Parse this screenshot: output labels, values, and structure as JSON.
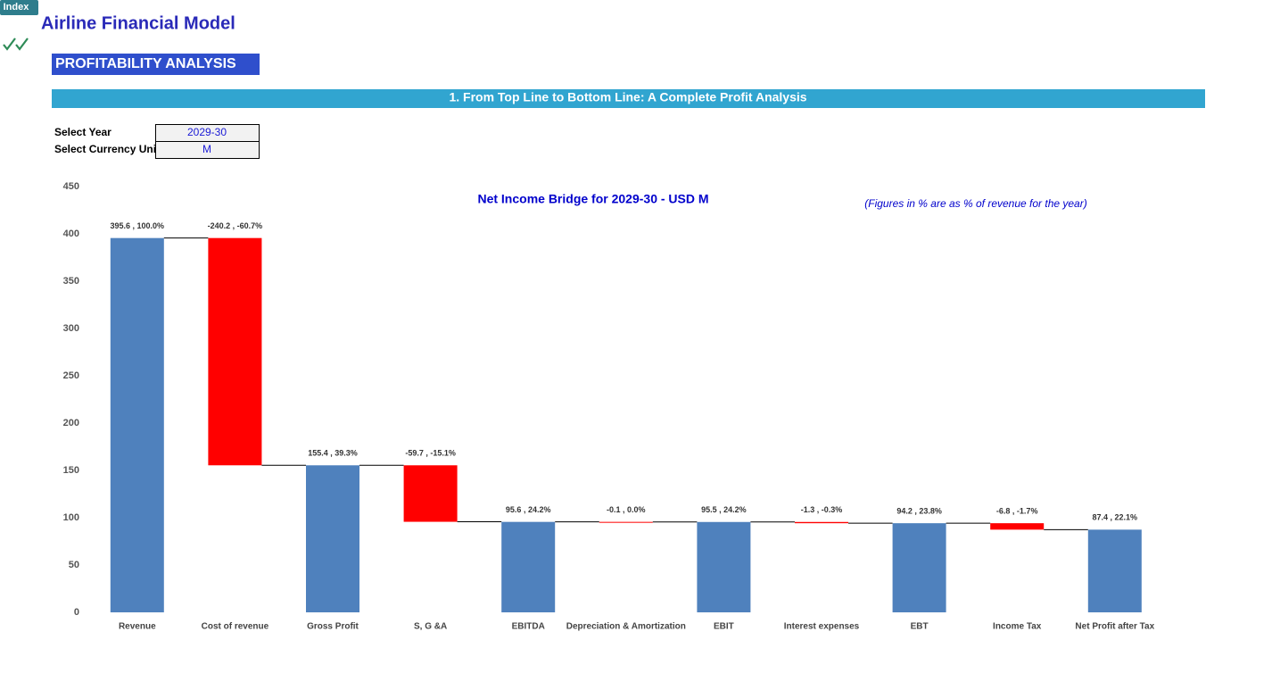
{
  "index_button": "Index",
  "header": {
    "title": "Airline Financial Model",
    "section": "PROFITABILITY ANALYSIS",
    "subsection": "1. From Top Line to Bottom Line: A Complete Profit Analysis"
  },
  "inputs": [
    {
      "label": "Select Year",
      "value": "2029-30"
    },
    {
      "label": "Select Currency Unit",
      "value": "M"
    }
  ],
  "chart_data": {
    "type": "waterfall",
    "title": "Net Income Bridge for 2029-30 - USD M",
    "annotation": "(Figures in % are as % of revenue for the year)",
    "categories": [
      "Revenue",
      "Cost of revenue",
      "Gross Profit",
      "S, G &A",
      "EBITDA",
      "Depreciation & Amortization",
      "EBIT",
      "Interest expenses",
      "EBT",
      "Income Tax",
      "Net Profit after Tax"
    ],
    "values": [
      395.6,
      -240.2,
      155.4,
      -59.7,
      95.6,
      -0.1,
      95.5,
      -1.3,
      94.2,
      -6.8,
      87.4
    ],
    "value_labels": [
      "395.6 , 100.0%",
      "-240.2 , -60.7%",
      "155.4 , 39.3%",
      "-59.7 , -15.1%",
      "95.6 , 24.2%",
      "-0.1 , 0.0%",
      "95.5 , 24.2%",
      "-1.3 , -0.3%",
      "94.2 , 23.8%",
      "-6.8 , -1.7%",
      "87.4 , 22.1%"
    ],
    "color": "#4f81bd",
    "negative_color": "#ff0000",
    "ylim": [
      0,
      450
    ],
    "yticks": [
      0,
      50,
      100,
      150,
      200,
      250,
      300,
      350,
      400,
      450
    ],
    "grid": false
  }
}
